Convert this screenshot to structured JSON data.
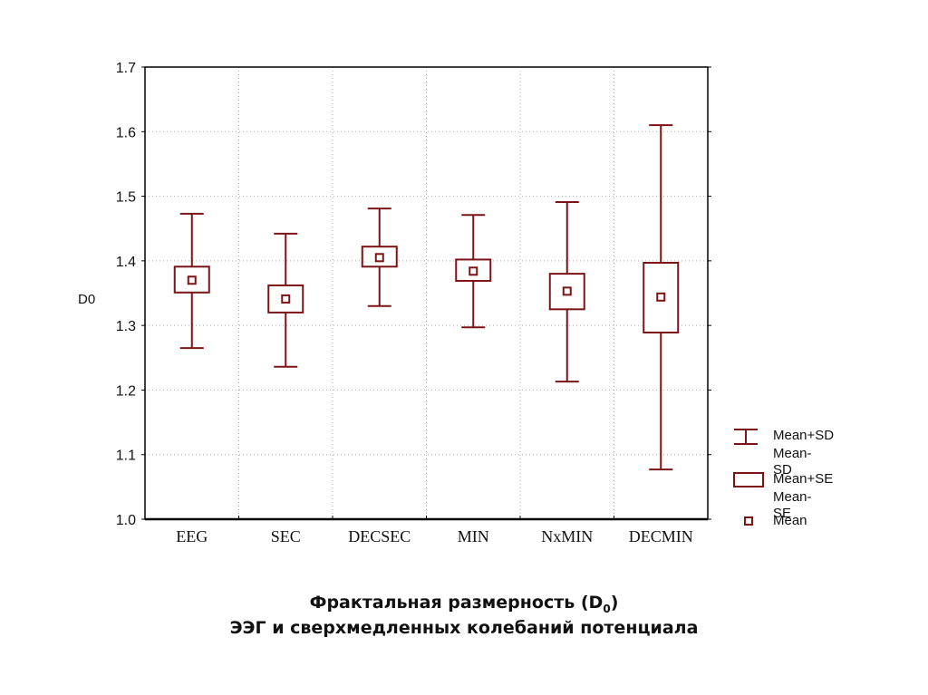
{
  "chart_data": {
    "type": "box",
    "title": "Фрактальная размерность (D0)",
    "subtitle": "ЭЭГ и сверхмедленных колебаний потенциала",
    "xlabel": "",
    "ylabel": "D0",
    "ylim": [
      1.0,
      1.7
    ],
    "yticks": [
      "1.0",
      "1.1",
      "1.2",
      "1.3",
      "1.4",
      "1.5",
      "1.6",
      "1.7"
    ],
    "grid": true,
    "legend_position": "right",
    "categories": [
      "EEG",
      "SEC",
      "DECSEC",
      "MIN",
      "NxMIN",
      "DECMIN"
    ],
    "series": [
      {
        "name": "Mean",
        "values": [
          1.37,
          1.341,
          1.405,
          1.384,
          1.353,
          1.344
        ]
      },
      {
        "name": "Mean+SE",
        "values": [
          1.391,
          1.362,
          1.422,
          1.402,
          1.38,
          1.397
        ]
      },
      {
        "name": "Mean-SE",
        "values": [
          1.351,
          1.32,
          1.391,
          1.369,
          1.325,
          1.289
        ]
      },
      {
        "name": "Mean+SD",
        "values": [
          1.473,
          1.442,
          1.481,
          1.471,
          1.491,
          1.61
        ]
      },
      {
        "name": "Mean-SD",
        "values": [
          1.265,
          1.236,
          1.33,
          1.297,
          1.213,
          1.077
        ]
      }
    ],
    "color": "#7b1416"
  },
  "legend": {
    "sd_line1": "Mean+SD",
    "sd_line2": "Mean-SD",
    "se_line1": "Mean+SE",
    "se_line2": "Mean-SE",
    "mean": "Mean"
  },
  "caption": {
    "line1_prefix": "Фрактальная размерность (D",
    "line1_sub": "0",
    "line1_suffix": ")",
    "line2": "ЭЭГ и сверхмедленных колебаний потенциала"
  }
}
